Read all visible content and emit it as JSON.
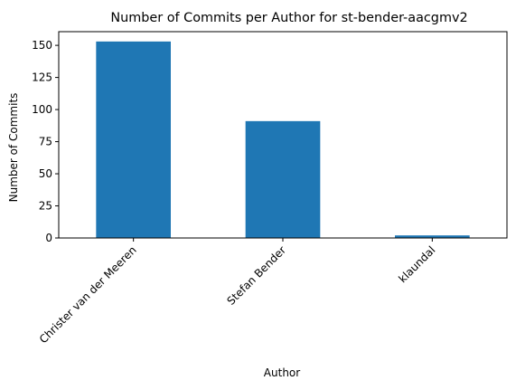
{
  "chart_data": {
    "type": "bar",
    "title": "Number of Commits per Author for st-bender-aacgmv2",
    "xlabel": "Author",
    "ylabel": "Number of Commits",
    "categories": [
      "Christer van der Meeren",
      "Stefan Bender",
      "klaundal"
    ],
    "values": [
      153,
      91,
      2
    ],
    "ylim": [
      0,
      160.65
    ],
    "yticks": [
      0,
      25,
      50,
      75,
      100,
      125,
      150
    ],
    "bar_color": "#1f77b4",
    "grid": false,
    "legend": "none"
  }
}
